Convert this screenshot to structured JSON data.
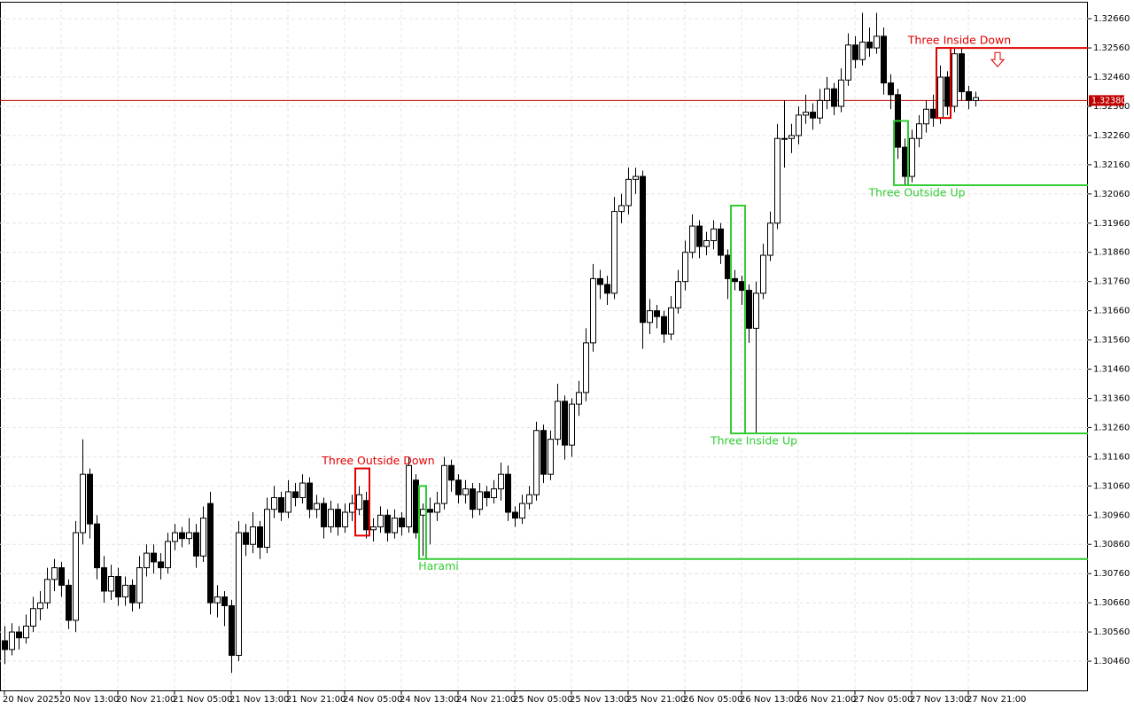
{
  "chart_data": {
    "type": "candlestick",
    "xlim": [
      -0.625,
      152.875
    ],
    "ylim": [
      1.3036,
      1.32715
    ],
    "grid": true,
    "up_color": "#ffffff",
    "down_color": "#000000",
    "yticks": [
      {
        "value": 1.3046,
        "label": "1.30460"
      },
      {
        "value": 1.3056,
        "label": "1.30560"
      },
      {
        "value": 1.3066,
        "label": "1.30660"
      },
      {
        "value": 1.3076,
        "label": "1.30760"
      },
      {
        "value": 1.3086,
        "label": "1.30860"
      },
      {
        "value": 1.3096,
        "label": "1.30960"
      },
      {
        "value": 1.3106,
        "label": "1.31060"
      },
      {
        "value": 1.3116,
        "label": "1.31160"
      },
      {
        "value": 1.3126,
        "label": "1.31260"
      },
      {
        "value": 1.3136,
        "label": "1.31360"
      },
      {
        "value": 1.3146,
        "label": "1.31460"
      },
      {
        "value": 1.3156,
        "label": "1.31560"
      },
      {
        "value": 1.3166,
        "label": "1.31660"
      },
      {
        "value": 1.3176,
        "label": "1.31760"
      },
      {
        "value": 1.3186,
        "label": "1.31860"
      },
      {
        "value": 1.3196,
        "label": "1.31960"
      },
      {
        "value": 1.3206,
        "label": "1.32060"
      },
      {
        "value": 1.3216,
        "label": "1.32160"
      },
      {
        "value": 1.3226,
        "label": "1.32260"
      },
      {
        "value": 1.3236,
        "label": "1.32360"
      },
      {
        "value": 1.3246,
        "label": "1.32460"
      },
      {
        "value": 1.3256,
        "label": "1.32560"
      },
      {
        "value": 1.3266,
        "label": "1.32660"
      }
    ],
    "xticks": [
      {
        "value": 0,
        "label": "20 Nov 2025"
      },
      {
        "value": 8,
        "label": "20 Nov 13:00"
      },
      {
        "value": 16,
        "label": "20 Nov 21:00"
      },
      {
        "value": 24,
        "label": "21 Nov 05:00"
      },
      {
        "value": 32,
        "label": "21 Nov 13:00"
      },
      {
        "value": 40,
        "label": "21 Nov 21:00"
      },
      {
        "value": 48,
        "label": "24 Nov 05:00"
      },
      {
        "value": 56,
        "label": "24 Nov 13:00"
      },
      {
        "value": 64,
        "label": "24 Nov 21:00"
      },
      {
        "value": 72,
        "label": "25 Nov 05:00"
      },
      {
        "value": 80,
        "label": "25 Nov 13:00"
      },
      {
        "value": 88,
        "label": "25 Nov 21:00"
      },
      {
        "value": 96,
        "label": "26 Nov 05:00"
      },
      {
        "value": 104,
        "label": "26 Nov 13:00"
      },
      {
        "value": 112,
        "label": "26 Nov 21:00"
      },
      {
        "value": 120,
        "label": "27 Nov 05:00"
      },
      {
        "value": 128,
        "label": "27 Nov 13:00"
      },
      {
        "value": 136,
        "label": "27 Nov 21:00"
      }
    ],
    "current_price": 1.3238,
    "current_price_label": "1.32380",
    "current_price_color": "#c00000",
    "patterns": [
      {
        "label": "Three Outside Down",
        "color": "#e00000",
        "from": 50,
        "to": 51,
        "high": 1.3112,
        "low": 1.3089,
        "label_side": "above"
      },
      {
        "label": "Harami",
        "color": "#33cc33",
        "from": 59,
        "to": 59,
        "high": 1.3106,
        "low": 1.3081,
        "extend": "low",
        "label_side": "below"
      },
      {
        "label": "Three Inside Up",
        "color": "#33cc33",
        "from": 103,
        "to": 104,
        "high": 1.3202,
        "low": 1.3124,
        "extend": "low",
        "label_side": "below"
      },
      {
        "label": "Three Outside Up",
        "color": "#33cc33",
        "from": 126,
        "to": 127,
        "high": 1.3231,
        "low": 1.3209,
        "extend": "low",
        "label_side": "below"
      },
      {
        "label": "Three Inside Down",
        "color": "#e00000",
        "from": 132,
        "to": 133,
        "high": 1.3256,
        "low": 1.3232,
        "extend": "high",
        "label_side": "above",
        "arrow": 1.3252
      }
    ],
    "candles": [
      [
        1.3053,
        1.3058,
        1.3045,
        1.305
      ],
      [
        1.305,
        1.3059,
        1.3048,
        1.3056
      ],
      [
        1.3056,
        1.3058,
        1.305,
        1.3054
      ],
      [
        1.3054,
        1.3062,
        1.3052,
        1.3058
      ],
      [
        1.3058,
        1.3068,
        1.3056,
        1.3064
      ],
      [
        1.3064,
        1.307,
        1.306,
        1.3066
      ],
      [
        1.3066,
        1.3078,
        1.3064,
        1.3074
      ],
      [
        1.3074,
        1.3081,
        1.307,
        1.3078
      ],
      [
        1.3078,
        1.308,
        1.3068,
        1.3072
      ],
      [
        1.3072,
        1.3074,
        1.3057,
        1.306
      ],
      [
        1.306,
        1.3094,
        1.3056,
        1.309
      ],
      [
        1.309,
        1.3122,
        1.3086,
        1.311
      ],
      [
        1.311,
        1.3112,
        1.3088,
        1.3093
      ],
      [
        1.3093,
        1.3096,
        1.3074,
        1.3078
      ],
      [
        1.3078,
        1.3082,
        1.3066,
        1.307
      ],
      [
        1.307,
        1.3079,
        1.3067,
        1.3075
      ],
      [
        1.3075,
        1.3078,
        1.3065,
        1.3068
      ],
      [
        1.3068,
        1.3075,
        1.3065,
        1.3072
      ],
      [
        1.3072,
        1.3074,
        1.3063,
        1.3066
      ],
      [
        1.3066,
        1.3082,
        1.3064,
        1.3078
      ],
      [
        1.3078,
        1.3086,
        1.3075,
        1.3083
      ],
      [
        1.3083,
        1.3086,
        1.3076,
        1.308
      ],
      [
        1.308,
        1.3083,
        1.3074,
        1.3078
      ],
      [
        1.3078,
        1.309,
        1.3076,
        1.3087
      ],
      [
        1.3087,
        1.3093,
        1.3084,
        1.309
      ],
      [
        1.309,
        1.3092,
        1.3085,
        1.3088
      ],
      [
        1.3088,
        1.3095,
        1.3086,
        1.309
      ],
      [
        1.309,
        1.3093,
        1.3078,
        1.3082
      ],
      [
        1.3082,
        1.3099,
        1.308,
        1.3095
      ],
      [
        1.31,
        1.3104,
        1.3062,
        1.3066
      ],
      [
        1.3066,
        1.3072,
        1.3061,
        1.3068
      ],
      [
        1.3068,
        1.307,
        1.3058,
        1.3065
      ],
      [
        1.3065,
        1.3067,
        1.3042,
        1.3048
      ],
      [
        1.3048,
        1.3094,
        1.3046,
        1.309
      ],
      [
        1.309,
        1.3093,
        1.3082,
        1.3086
      ],
      [
        1.3086,
        1.3097,
        1.3083,
        1.3092
      ],
      [
        1.3092,
        1.3094,
        1.3081,
        1.3085
      ],
      [
        1.3085,
        1.3102,
        1.3083,
        1.3098
      ],
      [
        1.3098,
        1.3106,
        1.3095,
        1.3102
      ],
      [
        1.3102,
        1.3104,
        1.3094,
        1.3097
      ],
      [
        1.3097,
        1.3108,
        1.3095,
        1.3104
      ],
      [
        1.3104,
        1.3107,
        1.3099,
        1.3102
      ],
      [
        1.3102,
        1.311,
        1.31,
        1.3107
      ],
      [
        1.3107,
        1.3109,
        1.3095,
        1.3098
      ],
      [
        1.3098,
        1.3103,
        1.3095,
        1.31
      ],
      [
        1.31,
        1.3102,
        1.3088,
        1.3092
      ],
      [
        1.3092,
        1.3101,
        1.309,
        1.3098
      ],
      [
        1.3098,
        1.31,
        1.3089,
        1.3092
      ],
      [
        1.3092,
        1.31,
        1.309,
        1.3097
      ],
      [
        1.3097,
        1.3103,
        1.3094,
        1.31
      ],
      [
        1.3098,
        1.3106,
        1.3096,
        1.3103
      ],
      [
        1.3101,
        1.3104,
        1.3088,
        1.3091
      ],
      [
        1.3091,
        1.3095,
        1.3087,
        1.3092
      ],
      [
        1.3092,
        1.3099,
        1.309,
        1.3096
      ],
      [
        1.3096,
        1.3098,
        1.3087,
        1.309
      ],
      [
        1.309,
        1.3098,
        1.3088,
        1.3095
      ],
      [
        1.3095,
        1.3097,
        1.3089,
        1.3092
      ],
      [
        1.3092,
        1.3116,
        1.309,
        1.3113
      ],
      [
        1.3108,
        1.311,
        1.3088,
        1.309
      ],
      [
        1.3096,
        1.31,
        1.3082,
        1.3098
      ],
      [
        1.3098,
        1.3102,
        1.3086,
        1.3097
      ],
      [
        1.3097,
        1.3104,
        1.3094,
        1.31
      ],
      [
        1.31,
        1.3116,
        1.3098,
        1.3113
      ],
      [
        1.3113,
        1.3115,
        1.3104,
        1.3108
      ],
      [
        1.3108,
        1.311,
        1.31,
        1.3103
      ],
      [
        1.3103,
        1.3108,
        1.31,
        1.3105
      ],
      [
        1.3105,
        1.3107,
        1.3095,
        1.3098
      ],
      [
        1.3098,
        1.3107,
        1.3096,
        1.3104
      ],
      [
        1.3104,
        1.3106,
        1.3099,
        1.3102
      ],
      [
        1.3102,
        1.3108,
        1.31,
        1.3105
      ],
      [
        1.3105,
        1.3114,
        1.3101,
        1.311
      ],
      [
        1.311,
        1.3113,
        1.3094,
        1.3097
      ],
      [
        1.3097,
        1.3099,
        1.3092,
        1.3095
      ],
      [
        1.3095,
        1.3103,
        1.3093,
        1.31
      ],
      [
        1.31,
        1.3106,
        1.3098,
        1.3103
      ],
      [
        1.3103,
        1.3128,
        1.3101,
        1.3125
      ],
      [
        1.3125,
        1.3127,
        1.3107,
        1.311
      ],
      [
        1.311,
        1.3125,
        1.3108,
        1.3122
      ],
      [
        1.3122,
        1.3141,
        1.312,
        1.3135
      ],
      [
        1.3135,
        1.3137,
        1.3115,
        1.312
      ],
      [
        1.312,
        1.3136,
        1.3116,
        1.3134
      ],
      [
        1.3134,
        1.3142,
        1.313,
        1.3138
      ],
      [
        1.3138,
        1.316,
        1.3135,
        1.3155
      ],
      [
        1.3155,
        1.3182,
        1.3152,
        1.3177
      ],
      [
        1.3177,
        1.318,
        1.317,
        1.3175
      ],
      [
        1.3175,
        1.3178,
        1.3168,
        1.3172
      ],
      [
        1.3172,
        1.3205,
        1.317,
        1.32
      ],
      [
        1.32,
        1.3206,
        1.3196,
        1.3202
      ],
      [
        1.3202,
        1.3215,
        1.3199,
        1.3211
      ],
      [
        1.3211,
        1.3215,
        1.3206,
        1.3212
      ],
      [
        1.3212,
        1.3214,
        1.3153,
        1.3162
      ],
      [
        1.3162,
        1.317,
        1.3158,
        1.3166
      ],
      [
        1.3166,
        1.3168,
        1.316,
        1.3164
      ],
      [
        1.3164,
        1.3166,
        1.3155,
        1.3158
      ],
      [
        1.3158,
        1.3171,
        1.3156,
        1.3167
      ],
      [
        1.3167,
        1.318,
        1.3165,
        1.3176
      ],
      [
        1.3176,
        1.319,
        1.3173,
        1.3186
      ],
      [
        1.3186,
        1.3199,
        1.3184,
        1.3195
      ],
      [
        1.3195,
        1.3197,
        1.3184,
        1.3188
      ],
      [
        1.3188,
        1.3193,
        1.3185,
        1.319
      ],
      [
        1.319,
        1.3197,
        1.3187,
        1.3194
      ],
      [
        1.3194,
        1.3196,
        1.3182,
        1.3185
      ],
      [
        1.3185,
        1.3187,
        1.317,
        1.3177
      ],
      [
        1.3177,
        1.318,
        1.3173,
        1.3176
      ],
      [
        1.3176,
        1.3178,
        1.3168,
        1.3173
      ],
      [
        1.3173,
        1.3175,
        1.3155,
        1.316
      ],
      [
        1.316,
        1.3176,
        1.3124,
        1.3172
      ],
      [
        1.3172,
        1.3189,
        1.317,
        1.3185
      ],
      [
        1.3185,
        1.32,
        1.3183,
        1.3196
      ],
      [
        1.3196,
        1.323,
        1.3194,
        1.3225
      ],
      [
        1.3225,
        1.3238,
        1.3215,
        1.3225
      ],
      [
        1.3225,
        1.323,
        1.322,
        1.3226
      ],
      [
        1.3226,
        1.3236,
        1.3223,
        1.3233
      ],
      [
        1.3233,
        1.324,
        1.323,
        1.3234
      ],
      [
        1.3234,
        1.3237,
        1.3228,
        1.3232
      ],
      [
        1.3232,
        1.3242,
        1.323,
        1.3238
      ],
      [
        1.3238,
        1.3246,
        1.3235,
        1.3242
      ],
      [
        1.3242,
        1.3244,
        1.3233,
        1.3236
      ],
      [
        1.3236,
        1.3249,
        1.3234,
        1.3245
      ],
      [
        1.3245,
        1.3261,
        1.3243,
        1.3257
      ],
      [
        1.3257,
        1.326,
        1.3249,
        1.3252
      ],
      [
        1.3252,
        1.3268,
        1.325,
        1.3258
      ],
      [
        1.3258,
        1.3263,
        1.3253,
        1.3256
      ],
      [
        1.3256,
        1.3268,
        1.3254,
        1.326
      ],
      [
        1.326,
        1.3263,
        1.324,
        1.3244
      ],
      [
        1.3244,
        1.3247,
        1.3235,
        1.324
      ],
      [
        1.324,
        1.3242,
        1.3218,
        1.3222
      ],
      [
        1.3222,
        1.3225,
        1.3209,
        1.3212
      ],
      [
        1.3212,
        1.3228,
        1.321,
        1.3225
      ],
      [
        1.3225,
        1.3233,
        1.3222,
        1.323
      ],
      [
        1.323,
        1.3238,
        1.3227,
        1.3235
      ],
      [
        1.3235,
        1.324,
        1.3229,
        1.3232
      ],
      [
        1.3232,
        1.325,
        1.323,
        1.3246
      ],
      [
        1.3246,
        1.3248,
        1.3233,
        1.3236
      ],
      [
        1.3236,
        1.3256,
        1.3234,
        1.3254
      ],
      [
        1.3254,
        1.3256,
        1.3238,
        1.3241
      ],
      [
        1.3241,
        1.3243,
        1.3235,
        1.3238
      ],
      [
        1.3238,
        1.3241,
        1.3236,
        1.3239
      ]
    ]
  }
}
